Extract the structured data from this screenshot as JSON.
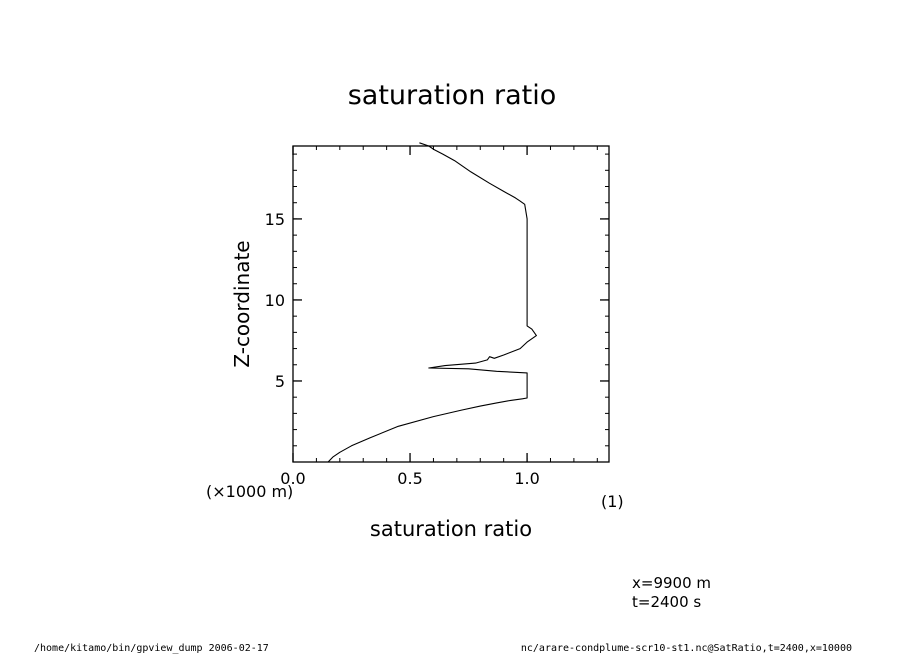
{
  "chart_data": {
    "type": "line",
    "title": "saturation ratio",
    "xlabel": "saturation ratio",
    "ylabel": "Z-coordinate",
    "x_unit": "(1)",
    "y_unit": "(×1000 m)",
    "xlim": [
      0.0,
      1.35
    ],
    "ylim": [
      0,
      19.5
    ],
    "xticks": [
      0.0,
      0.5,
      1.0
    ],
    "xtick_labels": [
      "0.0",
      "0.5",
      "1.0"
    ],
    "yticks": [
      5,
      10,
      15
    ],
    "ytick_labels": [
      "5",
      "10",
      "15"
    ],
    "grid": false,
    "series": [
      {
        "x": [
          0.15,
          0.17,
          0.2,
          0.25,
          0.33,
          0.45,
          0.6,
          0.72,
          0.8,
          0.87,
          0.93,
          0.98,
          1.0,
          1.0,
          1.0,
          1.0,
          0.87,
          0.75,
          0.58,
          0.65,
          0.78,
          0.83,
          0.84,
          0.86,
          0.9,
          0.97,
          1.0,
          1.04,
          1.02,
          1.0,
          1.0,
          1.0,
          1.0,
          0.99,
          0.97,
          0.95,
          0.9,
          0.84,
          0.76,
          0.69,
          0.64,
          0.6,
          0.58,
          0.54
        ],
        "y": [
          0.0,
          0.3,
          0.6,
          1.0,
          1.5,
          2.2,
          2.8,
          3.2,
          3.45,
          3.65,
          3.8,
          3.9,
          3.95,
          4.0,
          5.0,
          5.5,
          5.6,
          5.75,
          5.8,
          5.95,
          6.1,
          6.3,
          6.5,
          6.4,
          6.6,
          7.0,
          7.4,
          7.8,
          8.2,
          8.4,
          10.0,
          13.0,
          15.0,
          15.9,
          16.1,
          16.3,
          16.7,
          17.2,
          17.9,
          18.6,
          19.0,
          19.3,
          19.5,
          19.7
        ]
      }
    ]
  },
  "info": {
    "x_line": "x=9900  m",
    "t_line": "t=2400  s"
  },
  "footer": {
    "left": "/home/kitamo/bin/gpview_dump  2006-02-17",
    "right": "nc/arare-condplume-scr10-st1.nc@SatRatio,t=2400,x=10000"
  }
}
